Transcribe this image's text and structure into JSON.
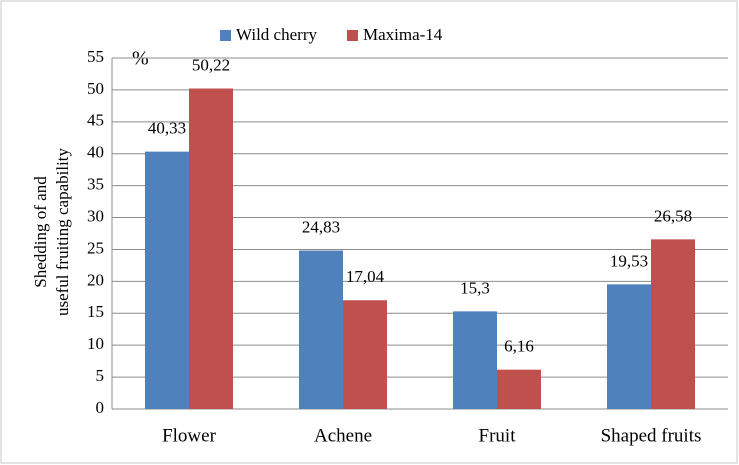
{
  "chart_data": {
    "type": "bar",
    "ylabel": [
      "Shedding of and",
      "useful fruiting capability"
    ],
    "annotation": "%",
    "categories": [
      "Flower",
      "Achene",
      "Fruit",
      "Shaped fruits"
    ],
    "series": [
      {
        "name": "Wild cherry",
        "color": "#4f81bd",
        "values": [
          40.33,
          24.83,
          15.3,
          19.53
        ],
        "value_labels": [
          "40,33",
          "24,83",
          "15,3",
          "19,53"
        ]
      },
      {
        "name": "Maxima-14",
        "color": "#c0504d",
        "values": [
          50.22,
          17.04,
          6.16,
          26.58
        ],
        "value_labels": [
          "50,22",
          "17,04",
          "6,16",
          "26,58"
        ]
      }
    ],
    "ylim": [
      0,
      55
    ],
    "yticks": [
      0,
      5,
      10,
      15,
      20,
      25,
      30,
      35,
      40,
      45,
      50,
      55
    ],
    "grid": true,
    "legend": "top"
  }
}
